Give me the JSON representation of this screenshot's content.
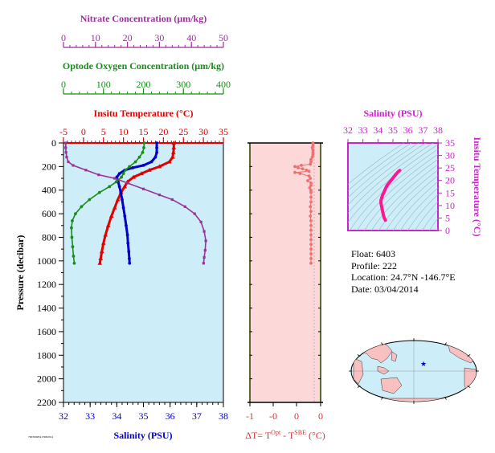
{
  "colors": {
    "nitrate": "#993399",
    "oxygen": "#1a8c1a",
    "temperature": "#e00000",
    "salinity": "#0000cc",
    "delta_t": "#f07070",
    "panel_bg": "#cdeef8",
    "delta_bg": "#fdd8d8",
    "ts_axis": "#cc22cc",
    "ts_curve": "#ff1493"
  },
  "info": {
    "float": "Float:  6403",
    "profile": "Profile:  222",
    "location": "Location:  24.7°N  -146.7°E",
    "date": "Date:  03/04/2014"
  },
  "tiny_label": "7903049FA 03062014",
  "chart_data": [
    {
      "type": "line",
      "name": "main-profile",
      "ylabel": "Pressure (decibar)",
      "ylim": [
        2200,
        0
      ],
      "yticks": [
        0,
        200,
        400,
        600,
        800,
        1000,
        1200,
        1400,
        1600,
        1800,
        2000,
        2200
      ],
      "axes": [
        {
          "key": "nitrate",
          "label": "Nitrate Concentration (μm/kg)",
          "range": [
            0,
            50
          ],
          "ticks": [
            0,
            10,
            20,
            30,
            40,
            50
          ]
        },
        {
          "key": "oxygen",
          "label": "Optode Oxygen Concentration (μm/kg)",
          "range": [
            0,
            400
          ],
          "ticks": [
            0,
            100,
            200,
            300,
            400
          ]
        },
        {
          "key": "temperature",
          "label": "Insitu Temperature (°C)",
          "range": [
            -5,
            35
          ],
          "ticks": [
            -5,
            0,
            5,
            10,
            15,
            20,
            25,
            30,
            35
          ]
        },
        {
          "key": "salinity",
          "label": "Salinity (PSU)",
          "range": [
            32,
            38
          ],
          "ticks": [
            32,
            33,
            34,
            35,
            36,
            37,
            38
          ]
        }
      ],
      "series": [
        {
          "key": "temperature",
          "marker": "triangle",
          "points": [
            [
              22.6,
              0
            ],
            [
              22.6,
              40
            ],
            [
              22.5,
              80
            ],
            [
              22.3,
              120
            ],
            [
              21.5,
              160
            ],
            [
              19,
              200
            ],
            [
              16.5,
              230
            ],
            [
              14.5,
              260
            ],
            [
              12.5,
              290
            ],
            [
              11,
              330
            ],
            [
              10.3,
              370
            ],
            [
              9.4,
              420
            ],
            [
              8.6,
              480
            ],
            [
              7.8,
              550
            ],
            [
              7,
              620
            ],
            [
              6.2,
              700
            ],
            [
              5.5,
              780
            ],
            [
              5,
              850
            ],
            [
              4.6,
              920
            ],
            [
              4.3,
              980
            ],
            [
              4.1,
              1020
            ]
          ]
        },
        {
          "key": "salinity",
          "marker": "circle",
          "points": [
            [
              35.5,
              0
            ],
            [
              35.5,
              40
            ],
            [
              35.5,
              80
            ],
            [
              35.45,
              120
            ],
            [
              35.3,
              160
            ],
            [
              35.0,
              190
            ],
            [
              34.6,
              210
            ],
            [
              34.3,
              230
            ],
            [
              34.1,
              260
            ],
            [
              34.0,
              290
            ],
            [
              34.05,
              330
            ],
            [
              34.1,
              370
            ],
            [
              34.15,
              420
            ],
            [
              34.2,
              480
            ],
            [
              34.25,
              550
            ],
            [
              34.3,
              620
            ],
            [
              34.35,
              700
            ],
            [
              34.4,
              780
            ],
            [
              34.42,
              850
            ],
            [
              34.45,
              920
            ],
            [
              34.47,
              980
            ],
            [
              34.48,
              1020
            ]
          ]
        },
        {
          "key": "oxygen",
          "marker": "circle",
          "points": [
            [
              202,
              0
            ],
            [
              201,
              40
            ],
            [
              198,
              80
            ],
            [
              190,
              120
            ],
            [
              180,
              160
            ],
            [
              165,
              200
            ],
            [
              155,
              230
            ],
            [
              150,
              260
            ],
            [
              145,
              290
            ],
            [
              132,
              330
            ],
            [
              115,
              370
            ],
            [
              90,
              420
            ],
            [
              65,
              480
            ],
            [
              45,
              540
            ],
            [
              30,
              600
            ],
            [
              22,
              660
            ],
            [
              20,
              720
            ],
            [
              21,
              800
            ],
            [
              23,
              880
            ],
            [
              25,
              960
            ],
            [
              27,
              1020
            ]
          ]
        },
        {
          "key": "nitrate",
          "marker": "square",
          "points": [
            [
              0.7,
              0
            ],
            [
              0.7,
              40
            ],
            [
              0.8,
              80
            ],
            [
              1,
              120
            ],
            [
              1.5,
              160
            ],
            [
              3,
              190
            ],
            [
              7,
              230
            ],
            [
              11,
              270
            ],
            [
              16,
              300
            ],
            [
              20,
              340
            ],
            [
              25,
              390
            ],
            [
              30,
              440
            ],
            [
              34,
              480
            ],
            [
              38,
              540
            ],
            [
              41,
              600
            ],
            [
              43,
              670
            ],
            [
              44,
              750
            ],
            [
              44.5,
              830
            ],
            [
              44.3,
              910
            ],
            [
              44,
              970
            ],
            [
              43.8,
              1020
            ]
          ]
        }
      ]
    },
    {
      "type": "scatter",
      "name": "delta-t",
      "xlabel": "ΔT= T^Opt - T^SBE (°C)",
      "xlim": [
        -1,
        0.1
      ],
      "xtick_labels": [
        "-1",
        "-0",
        "-0",
        "0",
        "0"
      ],
      "ylim": [
        2200,
        0
      ],
      "series": [
        {
          "key": "delta_t",
          "points": [
            [
              -0.02,
              0
            ],
            [
              -0.02,
              20
            ],
            [
              -0.03,
              40
            ],
            [
              -0.02,
              60
            ],
            [
              -0.02,
              80
            ],
            [
              -0.02,
              100
            ],
            [
              -0.03,
              120
            ],
            [
              -0.05,
              140
            ],
            [
              -0.05,
              160
            ],
            [
              -0.06,
              180
            ],
            [
              -0.2,
              190
            ],
            [
              -0.3,
              200
            ],
            [
              -0.25,
              210
            ],
            [
              -0.18,
              220
            ],
            [
              -0.12,
              230
            ],
            [
              -0.08,
              240
            ],
            [
              -0.3,
              250
            ],
            [
              -0.22,
              260
            ],
            [
              -0.08,
              280
            ],
            [
              -0.06,
              300
            ],
            [
              -0.1,
              320
            ],
            [
              -0.05,
              340
            ],
            [
              -0.05,
              360
            ],
            [
              -0.07,
              380
            ],
            [
              -0.05,
              400
            ],
            [
              -0.05,
              420
            ],
            [
              -0.05,
              460
            ],
            [
              -0.05,
              500
            ],
            [
              -0.06,
              540
            ],
            [
              -0.05,
              580
            ],
            [
              -0.06,
              620
            ],
            [
              -0.05,
              660
            ],
            [
              -0.05,
              700
            ],
            [
              -0.05,
              740
            ],
            [
              -0.05,
              780
            ],
            [
              -0.05,
              820
            ],
            [
              -0.05,
              860
            ],
            [
              -0.05,
              900
            ],
            [
              -0.05,
              940
            ],
            [
              -0.05,
              980
            ],
            [
              -0.05,
              1020
            ]
          ]
        }
      ]
    },
    {
      "type": "line",
      "name": "ts-diagram",
      "xlabel": "Salinity (PSU)",
      "ylabel": "Insitu Temperature (°C)",
      "xlim": [
        32,
        38
      ],
      "ylim": [
        0,
        35
      ],
      "xticks": [
        32,
        33,
        34,
        35,
        36,
        37,
        38
      ],
      "yticks": [
        0,
        5,
        10,
        15,
        20,
        25,
        30,
        35
      ],
      "series": [
        {
          "key": "ts",
          "points": [
            [
              34.5,
              4.1
            ],
            [
              34.42,
              5
            ],
            [
              34.35,
              6.5
            ],
            [
              34.3,
              8
            ],
            [
              34.25,
              9.5
            ],
            [
              34.2,
              11
            ],
            [
              34.2,
              12
            ],
            [
              34.3,
              14
            ],
            [
              34.45,
              16
            ],
            [
              34.6,
              18
            ],
            [
              34.8,
              19.5
            ],
            [
              35.0,
              21
            ],
            [
              35.2,
              22.5
            ],
            [
              35.35,
              23.5
            ],
            [
              35.45,
              24
            ]
          ]
        }
      ]
    }
  ]
}
